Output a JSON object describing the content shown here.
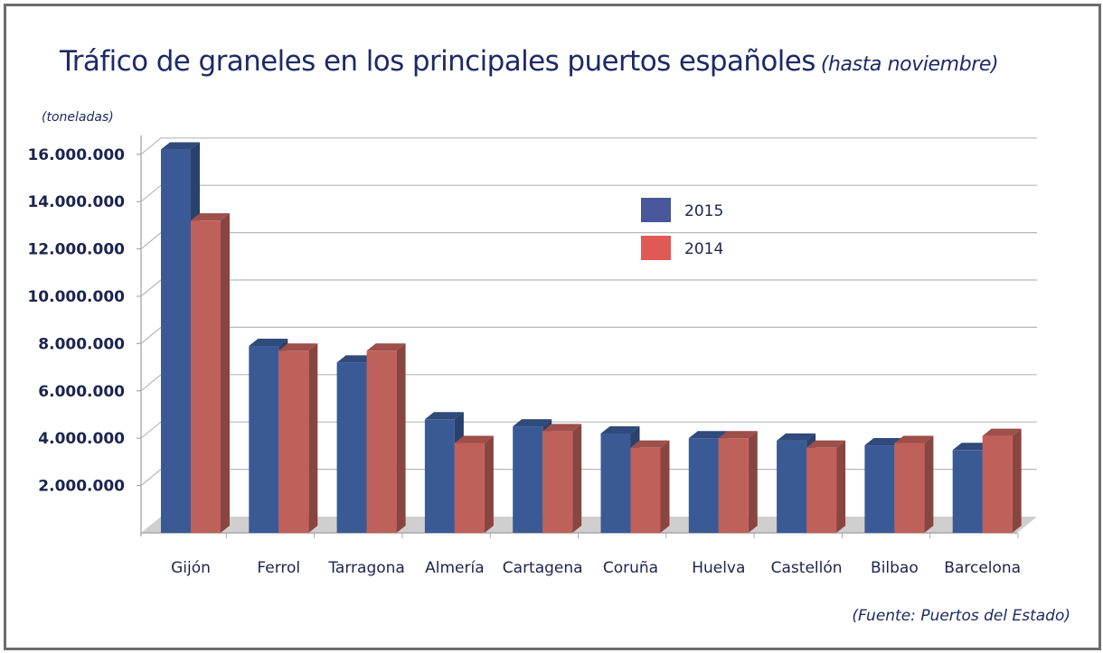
{
  "chart_data": {
    "type": "bar",
    "title": "Tráfico de graneles en los principales puertos españoles",
    "subtitle": "(hasta noviembre)",
    "ylabel": "(toneladas)",
    "xlabel": "",
    "source": "(Fuente: Puertos del Estado)",
    "categories": [
      "Gijón",
      "Ferrol",
      "Tarragona",
      "Almería",
      "Cartagena",
      "Coruña",
      "Huelva",
      "Castellón",
      "Bilbao",
      "Barcelona"
    ],
    "series": [
      {
        "name": "2015",
        "color": "#3a5a96",
        "values": [
          16200000,
          7900000,
          7200000,
          4800000,
          4500000,
          4200000,
          4000000,
          3900000,
          3700000,
          3500000
        ]
      },
      {
        "name": "2014",
        "color": "#c0605a",
        "values": [
          13200000,
          7700000,
          7700000,
          3800000,
          4300000,
          3600000,
          4000000,
          3600000,
          3800000,
          4100000
        ]
      }
    ],
    "ylim": [
      0,
      16000000
    ],
    "yticks": [
      2000000,
      4000000,
      6000000,
      8000000,
      10000000,
      12000000,
      14000000,
      16000000
    ],
    "ytick_labels": [
      "2.000.000",
      "4.000.000",
      "6.000.000",
      "8.000.000",
      "10.000.000",
      "12.000.000",
      "14.000.000",
      "16.000.000"
    ],
    "grid": true,
    "legend_position": "top-center",
    "style": "3d-clustered-column"
  }
}
